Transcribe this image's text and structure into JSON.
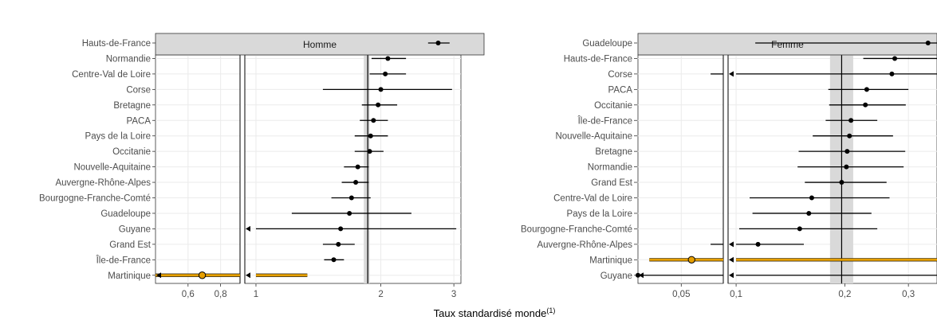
{
  "chart_data": [
    {
      "type": "scatter",
      "panel_title": "Homme",
      "categories": [
        "Hauts-de-France",
        "Normandie",
        "Centre-Val de Loire",
        "Corse",
        "Bretagne",
        "PACA",
        "Pays de la Loire",
        "Occitanie",
        "Nouvelle-Aquitaine",
        "Auvergne-Rhône-Alpes",
        "Bourgogne-Franche-Comté",
        "Guadeloupe",
        "Guyane",
        "Grand Est",
        "Île-de-France",
        "Martinique"
      ],
      "values": [
        2.75,
        2.08,
        2.05,
        2.0,
        1.97,
        1.92,
        1.89,
        1.88,
        1.76,
        1.74,
        1.7,
        1.68,
        1.6,
        1.58,
        1.54,
        0.68
      ],
      "ci_low": [
        2.6,
        1.9,
        1.88,
        1.45,
        1.8,
        1.78,
        1.73,
        1.73,
        1.63,
        1.61,
        1.52,
        1.22,
        0.95,
        1.45,
        1.46,
        0.45
      ],
      "ci_high": [
        2.93,
        2.3,
        2.3,
        2.97,
        2.19,
        2.08,
        2.08,
        2.03,
        1.87,
        1.87,
        1.89,
        2.37,
        3.04,
        1.73,
        1.63,
        1.33
      ],
      "ref_value": 1.86,
      "ref_band": [
        1.82,
        1.88
      ],
      "highlight": "Martinique",
      "tick_labels": [
        "0,6",
        "0,8",
        "1",
        "2",
        "3"
      ]
    },
    {
      "type": "scatter",
      "panel_title": "Femme",
      "categories": [
        "Guadeloupe",
        "Hauts-de-France",
        "Corse",
        "PACA",
        "Occitanie",
        "Île-de-France",
        "Nouvelle-Aquitaine",
        "Bretagne",
        "Normandie",
        "Grand Est",
        "Centre-Val de Loire",
        "Pays de la Loire",
        "Bourgogne-Franche-Comté",
        "Auvergne-Rhône-Alpes",
        "Martinique",
        "Guyane"
      ],
      "values": [
        0.34,
        0.275,
        0.27,
        0.23,
        0.228,
        0.208,
        0.206,
        0.203,
        0.202,
        0.196,
        0.162,
        0.159,
        0.15,
        0.115,
        0.059,
        0.025
      ],
      "ci_low": [
        0.113,
        0.225,
        0.08,
        0.18,
        0.181,
        0.177,
        0.163,
        0.149,
        0.148,
        0.155,
        0.109,
        0.111,
        0.102,
        0.08,
        0.03,
        0.02
      ],
      "ci_high": [
        0.36,
        0.36,
        0.36,
        0.3,
        0.295,
        0.246,
        0.272,
        0.294,
        0.291,
        0.261,
        0.266,
        0.237,
        0.246,
        0.154,
        0.36,
        0.36
      ],
      "ref_value": 0.196,
      "ref_band": [
        0.182,
        0.211
      ],
      "highlight": "Martinique",
      "tick_labels": [
        "0,05",
        "0,1",
        "0,2",
        "0,3"
      ]
    }
  ],
  "xlabel": "Taux standardisé monde",
  "xlabel_sup": "(1)",
  "colors": {
    "highlight": "#e69f00",
    "strip": "#d9d9d9",
    "band": "#d9d9d9",
    "grid": "#ebebeb"
  }
}
